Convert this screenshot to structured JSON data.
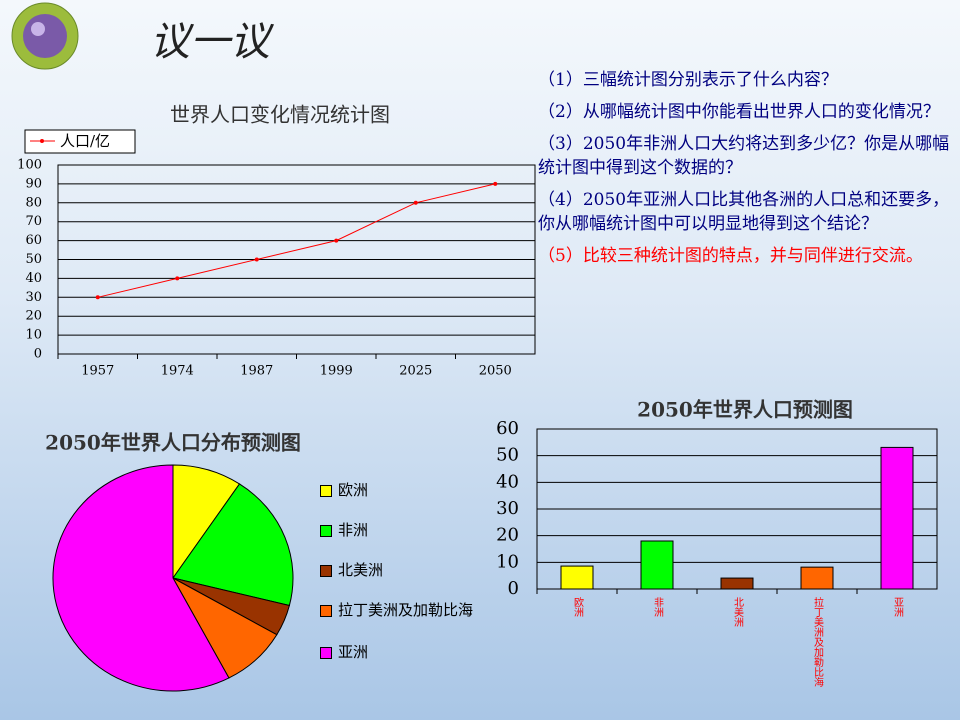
{
  "header": {
    "title": "议一议"
  },
  "questions": [
    {
      "text": "（1）三幅统计图分别表示了什么内容？",
      "color": "#000080"
    },
    {
      "text": "（2）从哪幅统计图中你能看出世界人口的变化情况？",
      "color": "#000080"
    },
    {
      "text": "（3）2050年非洲人口大约将达到多少亿？你是从哪幅统计图中得到这个数据的？",
      "color": "#000080"
    },
    {
      "text": "（4）2050年亚洲人口比其他各洲的人口总和还要多，你从哪幅统计图中可以明显地得到这个结论？",
      "color": "#000080"
    },
    {
      "text": "（5）比较三种统计图的特点，并与同伴进行交流。",
      "color": "#ff0000"
    }
  ],
  "chart_data": [
    {
      "type": "line",
      "title": "世界人口变化情况统计图",
      "categories": [
        "1957",
        "1974",
        "1987",
        "1999",
        "2025",
        "2050"
      ],
      "series": [
        {
          "name": "人口/亿",
          "color": "#ff0000",
          "values": [
            30,
            40,
            50,
            60,
            80,
            90
          ]
        }
      ],
      "ylim": [
        0,
        100
      ],
      "yticks": [
        0,
        10,
        20,
        30,
        40,
        50,
        60,
        70,
        80,
        90,
        100
      ],
      "grid": true
    },
    {
      "type": "pie",
      "title": "2050年世界人口分布预测图",
      "categories": [
        "欧洲",
        "非洲",
        "北美洲",
        "拉丁美洲及加勒比海",
        "亚洲"
      ],
      "values": [
        8.6,
        18,
        4.1,
        8.2,
        53.1
      ],
      "colors": [
        "#ffff00",
        "#00ff00",
        "#993300",
        "#ff6600",
        "#ff00ff"
      ]
    },
    {
      "type": "bar",
      "title": "2050年世界人口预测图",
      "categories": [
        "欧洲",
        "非洲",
        "北美洲",
        "拉丁美洲及加勒比海",
        "亚洲"
      ],
      "values": [
        8.6,
        18,
        4.1,
        8.2,
        53.1
      ],
      "colors": [
        "#ffff00",
        "#00ff00",
        "#993300",
        "#ff6600",
        "#ff00ff"
      ],
      "ylim": [
        0,
        60
      ],
      "yticks": [
        0,
        10,
        20,
        30,
        40,
        50,
        60
      ],
      "grid": true
    }
  ]
}
